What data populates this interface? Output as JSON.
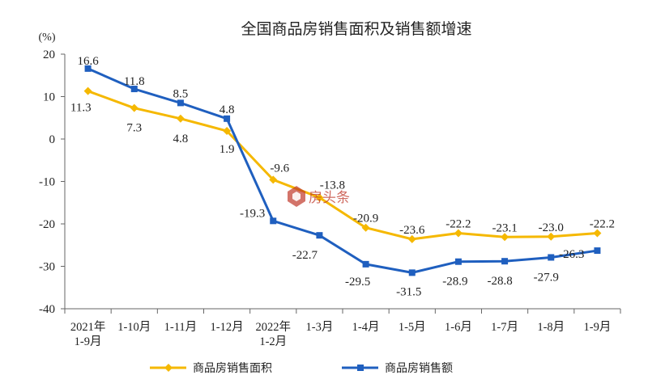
{
  "chart_data": {
    "type": "line",
    "title": "全国商品房销售面积及销售额增速",
    "ylabel": "(%)",
    "xlabel": "",
    "ylim": [
      -40,
      20
    ],
    "yticks": [
      "20",
      "10",
      "0",
      "-10",
      "-20",
      "-30",
      "-40"
    ],
    "categories": [
      [
        "2021年",
        "1-9月"
      ],
      [
        "1-10月"
      ],
      [
        "1-11月"
      ],
      [
        "1-12月"
      ],
      [
        "2022年",
        "1-2月"
      ],
      [
        "1-3月"
      ],
      [
        "1-4月"
      ],
      [
        "1-5月"
      ],
      [
        "1-6月"
      ],
      [
        "1-7月"
      ],
      [
        "1-8月"
      ],
      [
        "1-9月"
      ]
    ],
    "series": [
      {
        "name": "商品房销售面积",
        "color": "#f5b800",
        "marker": "diamond",
        "values": [
          11.3,
          7.3,
          4.8,
          1.9,
          -9.6,
          -13.8,
          -20.9,
          -23.6,
          -22.2,
          -23.1,
          -23.0,
          -22.2
        ],
        "labels": [
          "11.3",
          "7.3",
          "4.8",
          "1.9",
          "-9.6",
          "-13.8",
          "-20.9",
          "-23.6",
          "-22.2",
          "-23.1",
          "-23.0",
          "-22.2"
        ]
      },
      {
        "name": "商品房销售额",
        "color": "#1f5fbf",
        "marker": "square",
        "values": [
          16.6,
          11.8,
          8.5,
          4.8,
          -19.3,
          -22.7,
          -29.5,
          -31.5,
          -28.9,
          -28.8,
          -27.9,
          -26.3
        ],
        "labels": [
          "16.6",
          "11.8",
          "8.5",
          "4.8",
          "-19.3",
          "-22.7",
          "-29.5",
          "-31.5",
          "-28.9",
          "-28.8",
          "-27.9",
          "-26.3"
        ]
      }
    ],
    "legend": "bottom"
  },
  "watermark": {
    "text": "房头条"
  }
}
